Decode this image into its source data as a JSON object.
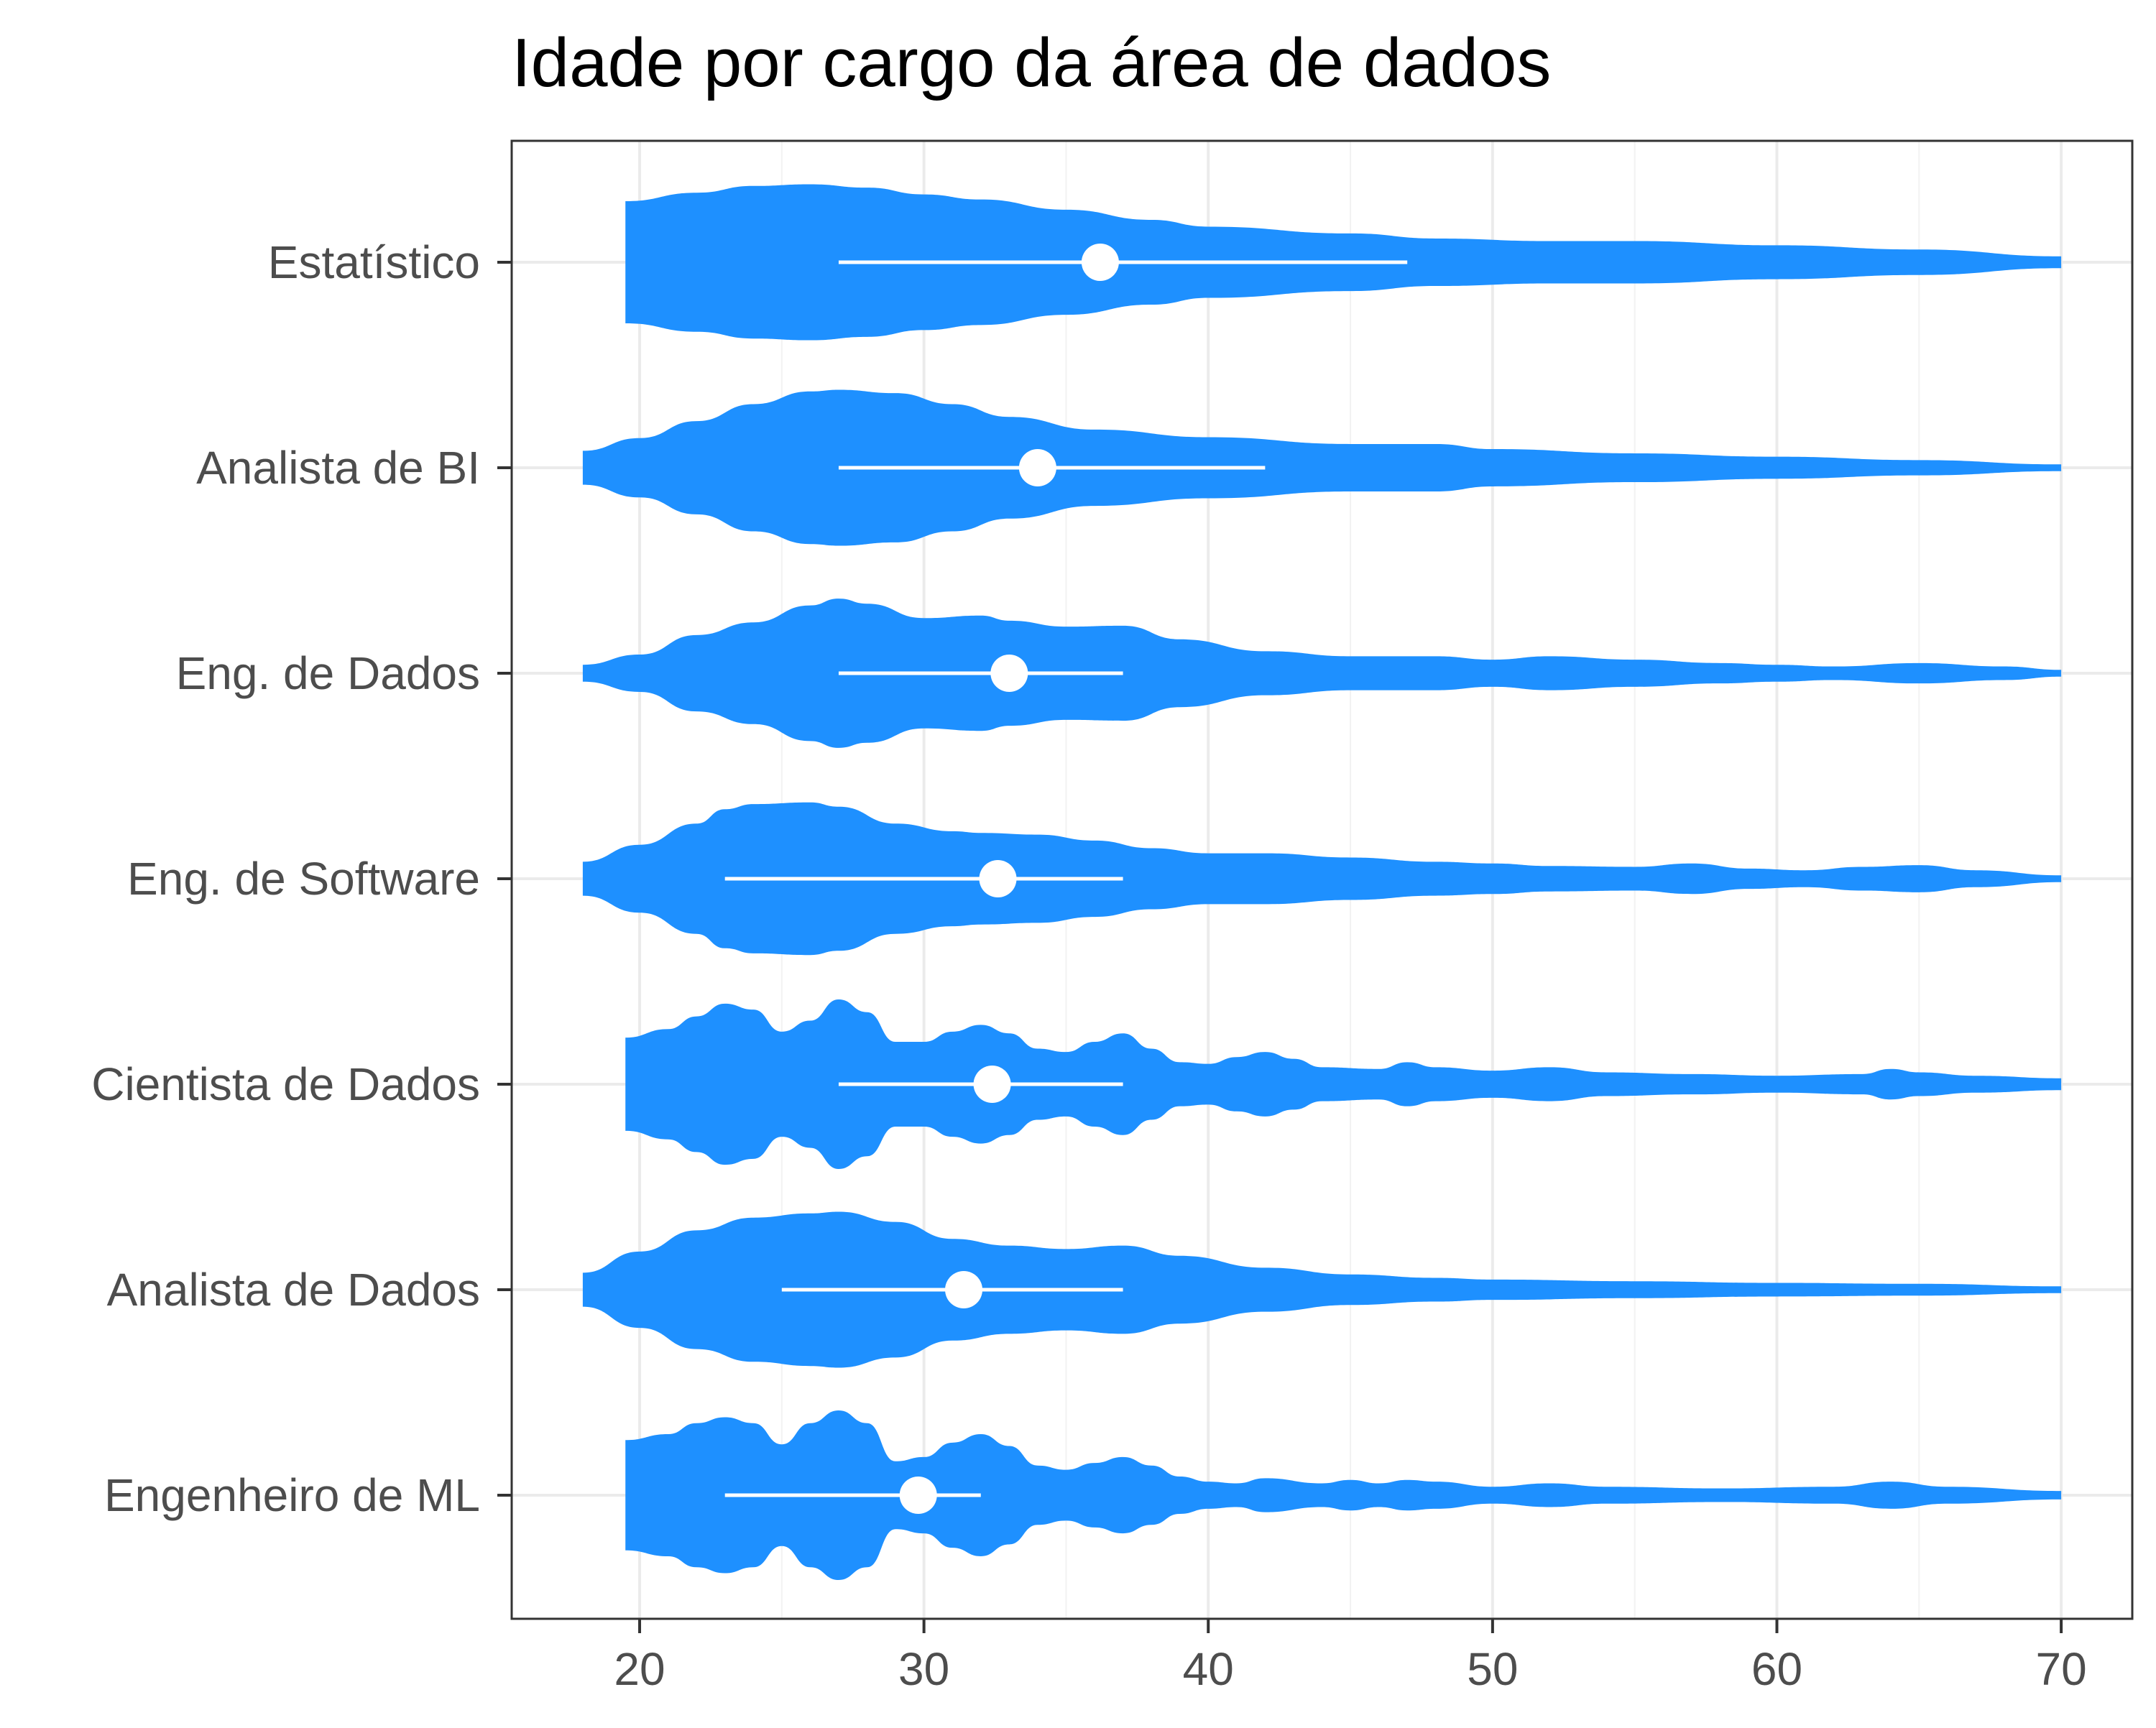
{
  "colors": {
    "violin": "#1e90ff",
    "summary": "#ffffff",
    "grid_major": "#ebebeb",
    "grid_minor": "#f2f2f2",
    "panel_border": "#333333",
    "tick_text": "#4d4d4d",
    "title_text": "#000000"
  },
  "chart_data": {
    "type": "violin",
    "orientation": "horizontal",
    "title": "Idade por cargo da área de dados",
    "xlabel": "",
    "ylabel": "",
    "xlim": [
      15.5,
      72.5
    ],
    "x_ticks": [
      20,
      30,
      40,
      50,
      60,
      70
    ],
    "x_tick_labels": [
      "20",
      "30",
      "40",
      "50",
      "60",
      "70"
    ],
    "grid": true,
    "legend": "none",
    "categories": [
      "Estatístico",
      "Analista de BI",
      "Eng. de Dados",
      "Eng. de Software",
      "Cientista de Dados",
      "Analista de Dados",
      "Engenheiro de ML"
    ],
    "series": [
      {
        "category": "Estatístico",
        "min": 19.5,
        "max": 70,
        "density": [
          [
            19.5,
            0.72
          ],
          [
            22,
            0.82
          ],
          [
            24,
            0.9
          ],
          [
            26,
            0.92
          ],
          [
            28,
            0.88
          ],
          [
            30,
            0.8
          ],
          [
            32,
            0.74
          ],
          [
            35,
            0.62
          ],
          [
            38,
            0.5
          ],
          [
            40,
            0.42
          ],
          [
            45,
            0.34
          ],
          [
            48,
            0.28
          ],
          [
            52,
            0.25
          ],
          [
            55,
            0.25
          ],
          [
            60,
            0.2
          ],
          [
            65,
            0.15
          ],
          [
            70,
            0.07
          ]
        ],
        "q1": 27,
        "mean": 36.2,
        "q3": 47
      },
      {
        "category": "Analista de BI",
        "min": 18,
        "max": 70,
        "density": [
          [
            18,
            0.2
          ],
          [
            20,
            0.35
          ],
          [
            22,
            0.55
          ],
          [
            24,
            0.75
          ],
          [
            26,
            0.9
          ],
          [
            27,
            0.92
          ],
          [
            29,
            0.88
          ],
          [
            31,
            0.75
          ],
          [
            33,
            0.6
          ],
          [
            36,
            0.45
          ],
          [
            40,
            0.36
          ],
          [
            45,
            0.28
          ],
          [
            48,
            0.28
          ],
          [
            50,
            0.22
          ],
          [
            55,
            0.17
          ],
          [
            60,
            0.13
          ],
          [
            65,
            0.09
          ],
          [
            70,
            0.04
          ]
        ],
        "q1": 27,
        "mean": 34,
        "q3": 42
      },
      {
        "category": "Eng. de Dados",
        "min": 18,
        "max": 70,
        "density": [
          [
            18,
            0.1
          ],
          [
            20,
            0.22
          ],
          [
            22,
            0.45
          ],
          [
            24,
            0.6
          ],
          [
            26,
            0.8
          ],
          [
            27,
            0.88
          ],
          [
            28,
            0.82
          ],
          [
            30,
            0.65
          ],
          [
            32,
            0.68
          ],
          [
            33,
            0.62
          ],
          [
            35,
            0.55
          ],
          [
            37,
            0.56
          ],
          [
            39,
            0.4
          ],
          [
            42,
            0.26
          ],
          [
            45,
            0.2
          ],
          [
            48,
            0.2
          ],
          [
            50,
            0.16
          ],
          [
            52,
            0.2
          ],
          [
            55,
            0.16
          ],
          [
            58,
            0.12
          ],
          [
            60,
            0.1
          ],
          [
            62,
            0.08
          ],
          [
            65,
            0.12
          ],
          [
            68,
            0.08
          ],
          [
            70,
            0.04
          ]
        ],
        "q1": 27,
        "mean": 33,
        "q3": 37
      },
      {
        "category": "Eng. de Software",
        "min": 18,
        "max": 70,
        "density": [
          [
            18,
            0.2
          ],
          [
            20,
            0.4
          ],
          [
            22,
            0.65
          ],
          [
            23,
            0.82
          ],
          [
            24,
            0.88
          ],
          [
            26,
            0.9
          ],
          [
            27,
            0.85
          ],
          [
            29,
            0.65
          ],
          [
            31,
            0.56
          ],
          [
            32,
            0.54
          ],
          [
            34,
            0.52
          ],
          [
            36,
            0.45
          ],
          [
            38,
            0.36
          ],
          [
            40,
            0.3
          ],
          [
            42,
            0.3
          ],
          [
            45,
            0.25
          ],
          [
            48,
            0.2
          ],
          [
            50,
            0.18
          ],
          [
            52,
            0.15
          ],
          [
            55,
            0.14
          ],
          [
            57,
            0.18
          ],
          [
            59,
            0.12
          ],
          [
            61,
            0.1
          ],
          [
            63,
            0.14
          ],
          [
            65,
            0.16
          ],
          [
            67,
            0.1
          ],
          [
            70,
            0.04
          ]
        ],
        "q1": 23,
        "mean": 32.6,
        "q3": 37
      },
      {
        "category": "Cientista de Dados",
        "min": 19.5,
        "max": 70,
        "density": [
          [
            19.5,
            0.55
          ],
          [
            21,
            0.65
          ],
          [
            22,
            0.8
          ],
          [
            23,
            0.95
          ],
          [
            24,
            0.88
          ],
          [
            25,
            0.62
          ],
          [
            26,
            0.75
          ],
          [
            27,
            1.0
          ],
          [
            28,
            0.85
          ],
          [
            29,
            0.5
          ],
          [
            30,
            0.5
          ],
          [
            31,
            0.62
          ],
          [
            32,
            0.7
          ],
          [
            33,
            0.6
          ],
          [
            34,
            0.42
          ],
          [
            35,
            0.38
          ],
          [
            36,
            0.5
          ],
          [
            37,
            0.6
          ],
          [
            38,
            0.42
          ],
          [
            39,
            0.26
          ],
          [
            40,
            0.24
          ],
          [
            41,
            0.32
          ],
          [
            42,
            0.38
          ],
          [
            43,
            0.3
          ],
          [
            44,
            0.2
          ],
          [
            46,
            0.18
          ],
          [
            47,
            0.26
          ],
          [
            48,
            0.2
          ],
          [
            50,
            0.16
          ],
          [
            52,
            0.2
          ],
          [
            54,
            0.14
          ],
          [
            57,
            0.12
          ],
          [
            60,
            0.1
          ],
          [
            63,
            0.12
          ],
          [
            64,
            0.18
          ],
          [
            65,
            0.14
          ],
          [
            67,
            0.1
          ],
          [
            70,
            0.07
          ]
        ],
        "q1": 27,
        "mean": 32.4,
        "q3": 37
      },
      {
        "category": "Analista de Dados",
        "min": 18,
        "max": 70,
        "density": [
          [
            18,
            0.2
          ],
          [
            20,
            0.45
          ],
          [
            22,
            0.7
          ],
          [
            24,
            0.85
          ],
          [
            26,
            0.9
          ],
          [
            27,
            0.92
          ],
          [
            29,
            0.8
          ],
          [
            31,
            0.6
          ],
          [
            33,
            0.52
          ],
          [
            35,
            0.48
          ],
          [
            37,
            0.52
          ],
          [
            39,
            0.4
          ],
          [
            42,
            0.26
          ],
          [
            45,
            0.18
          ],
          [
            48,
            0.14
          ],
          [
            50,
            0.12
          ],
          [
            55,
            0.1
          ],
          [
            60,
            0.08
          ],
          [
            65,
            0.07
          ],
          [
            70,
            0.04
          ]
        ],
        "q1": 25,
        "mean": 31.4,
        "q3": 37
      },
      {
        "category": "Engenheiro de ML",
        "min": 19.5,
        "max": 70,
        "density": [
          [
            19.5,
            0.65
          ],
          [
            21,
            0.72
          ],
          [
            22,
            0.85
          ],
          [
            23,
            0.92
          ],
          [
            24,
            0.85
          ],
          [
            25,
            0.6
          ],
          [
            26,
            0.85
          ],
          [
            27,
            1.0
          ],
          [
            28,
            0.85
          ],
          [
            29,
            0.4
          ],
          [
            30,
            0.45
          ],
          [
            31,
            0.62
          ],
          [
            32,
            0.72
          ],
          [
            33,
            0.58
          ],
          [
            34,
            0.35
          ],
          [
            35,
            0.3
          ],
          [
            36,
            0.38
          ],
          [
            37,
            0.45
          ],
          [
            38,
            0.35
          ],
          [
            39,
            0.22
          ],
          [
            40,
            0.16
          ],
          [
            41,
            0.14
          ],
          [
            42,
            0.2
          ],
          [
            44,
            0.14
          ],
          [
            45,
            0.18
          ],
          [
            46,
            0.14
          ],
          [
            47,
            0.18
          ],
          [
            48,
            0.16
          ],
          [
            50,
            0.1
          ],
          [
            52,
            0.14
          ],
          [
            54,
            0.1
          ],
          [
            58,
            0.08
          ],
          [
            62,
            0.1
          ],
          [
            64,
            0.16
          ],
          [
            66,
            0.1
          ],
          [
            70,
            0.05
          ]
        ],
        "q1": 23,
        "mean": 29.8,
        "q3": 32
      }
    ]
  }
}
